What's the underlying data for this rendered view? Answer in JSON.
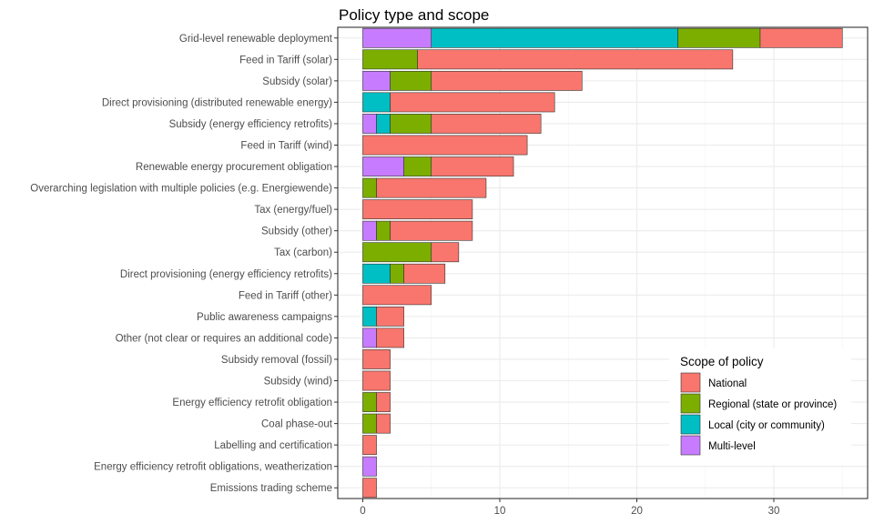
{
  "chart_data": {
    "type": "bar",
    "orientation": "horizontal",
    "stacked": true,
    "title": "Policy type and scope",
    "xlabel": "",
    "ylabel": "",
    "xlim": [
      0,
      36.5
    ],
    "xticks": [
      0,
      10,
      20,
      30
    ],
    "grid": true,
    "legend_position": "bottom-right inside plot",
    "legend_title": "Scope of policy",
    "categories": [
      "Grid-level renewable deployment",
      "Feed in Tariff (solar)",
      "Subsidy (solar)",
      "Direct provisioning (distributed renewable energy)",
      "Subsidy (energy efficiency retrofits)",
      "Feed in Tariff (wind)",
      "Renewable energy procurement obligation",
      "Overarching legislation with multiple policies (e.g. Energiewende)",
      "Tax (energy/fuel)",
      "Subsidy (other)",
      "Tax (carbon)",
      "Direct provisioning (energy efficiency retrofits)",
      "Feed in Tariff (other)",
      "Public awareness campaigns",
      "Other (not clear or requires an additional code)",
      "Subsidy removal (fossil)",
      "Subsidy (wind)",
      "Energy efficiency retrofit obligation",
      "Coal phase-out",
      "Labelling and certification",
      "Energy efficiency retrofit obligations, weatherization",
      "Emissions trading scheme"
    ],
    "stack_order": [
      "Multi-level",
      "Local (city or community)",
      "Regional (state or province)",
      "National"
    ],
    "series": [
      {
        "name": "National",
        "color": "#F8766D",
        "values": [
          6,
          23,
          11,
          12,
          8,
          12,
          6,
          8,
          8,
          6,
          2,
          3,
          5,
          2,
          2,
          2,
          2,
          1,
          1,
          1,
          0,
          1
        ]
      },
      {
        "name": "Regional (state or province)",
        "color": "#7CAE00",
        "values": [
          6,
          4,
          3,
          0,
          3,
          0,
          2,
          1,
          0,
          1,
          5,
          1,
          0,
          0,
          0,
          0,
          0,
          1,
          1,
          0,
          0,
          0
        ]
      },
      {
        "name": "Local (city or community)",
        "color": "#00BFC4",
        "values": [
          18,
          0,
          0,
          2,
          1,
          0,
          0,
          0,
          0,
          0,
          0,
          2,
          0,
          1,
          0,
          0,
          0,
          0,
          0,
          0,
          0,
          0
        ]
      },
      {
        "name": "Multi-level",
        "color": "#C77CFF",
        "values": [
          5,
          0,
          2,
          0,
          1,
          0,
          3,
          0,
          0,
          1,
          0,
          0,
          0,
          0,
          1,
          0,
          0,
          0,
          0,
          0,
          1,
          0
        ]
      }
    ],
    "legend_order": [
      "National",
      "Regional (state or province)",
      "Local (city or community)",
      "Multi-level"
    ]
  }
}
